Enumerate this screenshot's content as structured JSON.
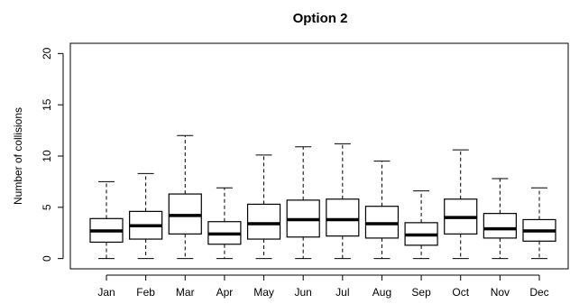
{
  "chart_data": {
    "type": "boxplot",
    "title": "Option 2",
    "xlabel": "",
    "ylabel": "Number of collisions",
    "ylim": [
      -1,
      21
    ],
    "yticks": [
      0,
      5,
      10,
      15,
      20
    ],
    "categories": [
      "Jan",
      "Feb",
      "Mar",
      "Apr",
      "May",
      "Jun",
      "Jul",
      "Aug",
      "Sep",
      "Oct",
      "Nov",
      "Dec"
    ],
    "boxes": [
      {
        "min": 0,
        "q1": 1.6,
        "median": 2.7,
        "q3": 3.9,
        "max": 7.5
      },
      {
        "min": 0,
        "q1": 1.9,
        "median": 3.2,
        "q3": 4.6,
        "max": 8.3
      },
      {
        "min": 0,
        "q1": 2.4,
        "median": 4.2,
        "q3": 6.3,
        "max": 12.0
      },
      {
        "min": 0,
        "q1": 1.4,
        "median": 2.4,
        "q3": 3.6,
        "max": 6.9
      },
      {
        "min": 0,
        "q1": 1.9,
        "median": 3.4,
        "q3": 5.3,
        "max": 10.1
      },
      {
        "min": 0,
        "q1": 2.1,
        "median": 3.8,
        "q3": 5.7,
        "max": 10.9
      },
      {
        "min": 0,
        "q1": 2.2,
        "median": 3.8,
        "q3": 5.8,
        "max": 11.2
      },
      {
        "min": 0,
        "q1": 2.0,
        "median": 3.4,
        "q3": 5.1,
        "max": 9.5
      },
      {
        "min": 0,
        "q1": 1.3,
        "median": 2.3,
        "q3": 3.5,
        "max": 6.6
      },
      {
        "min": 0,
        "q1": 2.4,
        "median": 4.0,
        "q3": 5.8,
        "max": 10.6
      },
      {
        "min": 0,
        "q1": 2.0,
        "median": 2.9,
        "q3": 4.4,
        "max": 7.8
      },
      {
        "min": 0,
        "q1": 1.7,
        "median": 2.7,
        "q3": 3.8,
        "max": 6.9
      }
    ],
    "grid": false,
    "legend": "none"
  }
}
